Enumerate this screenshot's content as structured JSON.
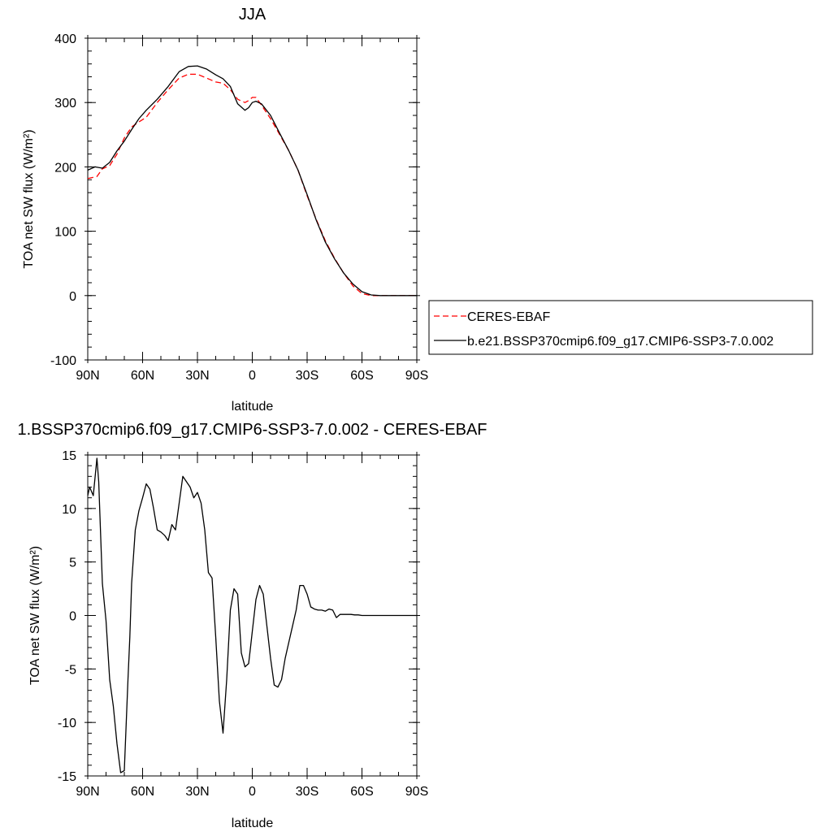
{
  "chart_data": [
    {
      "type": "line",
      "title": "JJA",
      "xlabel": "latitude",
      "ylabel": "TOA net SW flux (W/m²)",
      "xlim": [
        90,
        -90
      ],
      "ylim": [
        -100,
        400
      ],
      "x_ticks": [
        {
          "value": 90,
          "label": "90N"
        },
        {
          "value": 60,
          "label": "60N"
        },
        {
          "value": 30,
          "label": "30N"
        },
        {
          "value": 0,
          "label": "0"
        },
        {
          "value": -30,
          "label": "30S"
        },
        {
          "value": -60,
          "label": "60S"
        },
        {
          "value": -90,
          "label": "90S"
        }
      ],
      "y_ticks": [
        {
          "value": 400,
          "label": "400"
        },
        {
          "value": 300,
          "label": "300"
        },
        {
          "value": 200,
          "label": "200"
        },
        {
          "value": 100,
          "label": "100"
        },
        {
          "value": 0,
          "label": "0"
        },
        {
          "value": -100,
          "label": "-100"
        }
      ],
      "series": [
        {
          "name": "CERES-EBAF",
          "color": "#ff0000",
          "dash": true,
          "x": [
            90,
            85,
            82,
            78,
            74,
            70,
            66,
            62,
            58,
            52,
            46,
            40,
            35,
            30,
            25,
            20,
            16,
            12,
            8,
            4,
            2,
            0,
            -2,
            -5,
            -10,
            -15,
            -20,
            -25,
            -30,
            -35,
            -40,
            -45,
            -50,
            -55,
            -60,
            -65,
            -70,
            -75,
            -80,
            -85,
            -90
          ],
          "y": [
            182,
            185,
            197,
            202,
            220,
            245,
            262,
            270,
            277,
            300,
            320,
            338,
            344,
            344,
            338,
            332,
            330,
            320,
            305,
            300,
            303,
            308,
            308,
            296,
            275,
            250,
            225,
            195,
            155,
            118,
            85,
            58,
            35,
            15,
            3,
            0,
            0,
            0,
            0,
            0,
            0
          ]
        },
        {
          "name": "b.e21.BSSP370cmip6.f09_g17.CMIP6-SSP3-7.0.002",
          "color": "#000000",
          "dash": false,
          "x": [
            90,
            86,
            82,
            78,
            74,
            70,
            66,
            62,
            58,
            52,
            46,
            40,
            35,
            30,
            25,
            20,
            16,
            12,
            8,
            4,
            2,
            0,
            -2,
            -5,
            -10,
            -15,
            -20,
            -25,
            -30,
            -35,
            -40,
            -45,
            -50,
            -55,
            -60,
            -65,
            -70,
            -75,
            -80,
            -85,
            -90
          ],
          "y": [
            195,
            200,
            198,
            207,
            225,
            240,
            258,
            275,
            288,
            305,
            325,
            348,
            356,
            357,
            352,
            343,
            337,
            325,
            298,
            288,
            292,
            300,
            302,
            298,
            280,
            252,
            225,
            195,
            157,
            117,
            83,
            57,
            35,
            18,
            6,
            1,
            0,
            0,
            0,
            0,
            0
          ]
        }
      ],
      "legend": {
        "placement": "right",
        "entries": [
          "CERES-EBAF",
          "b.e21.BSSP370cmip6.f09_g17.CMIP6-SSP3-7.0.002"
        ]
      }
    },
    {
      "type": "line",
      "title": "1.BSSP370cmip6.f09_g17.CMIP6-SSP3-7.0.002 - CERES-EBAF",
      "xlabel": "latitude",
      "ylabel": "TOA net SW flux (W/m²)",
      "xlim": [
        90,
        -90
      ],
      "ylim": [
        -15,
        15
      ],
      "x_ticks": [
        {
          "value": 90,
          "label": "90N"
        },
        {
          "value": 60,
          "label": "60N"
        },
        {
          "value": 30,
          "label": "30N"
        },
        {
          "value": 0,
          "label": "0"
        },
        {
          "value": -30,
          "label": "30S"
        },
        {
          "value": -60,
          "label": "60S"
        },
        {
          "value": -90,
          "label": "90S"
        }
      ],
      "y_ticks": [
        {
          "value": 15,
          "label": "15"
        },
        {
          "value": 10,
          "label": "10"
        },
        {
          "value": 5,
          "label": "5"
        },
        {
          "value": 0,
          "label": "0"
        },
        {
          "value": -5,
          "label": "-5"
        },
        {
          "value": -10,
          "label": "-10"
        },
        {
          "value": -15,
          "label": "-15"
        }
      ],
      "series": [
        {
          "color": "#000000",
          "dash": false,
          "x": [
            90,
            89,
            87,
            85,
            84,
            82,
            80,
            78,
            76,
            74,
            72,
            70,
            68,
            67,
            66,
            64,
            62,
            60,
            58,
            56,
            54,
            52,
            50,
            48,
            46,
            44,
            42,
            40,
            38,
            36,
            34,
            32,
            30,
            28,
            26,
            24,
            22,
            20,
            18,
            16,
            14,
            12,
            10,
            8,
            6,
            4,
            2,
            1,
            0,
            -2,
            -4,
            -6,
            -8,
            -10,
            -12,
            -14,
            -16,
            -18,
            -20,
            -22,
            -24,
            -26,
            -28,
            -30,
            -32,
            -34,
            -36,
            -38,
            -40,
            -42,
            -44,
            -46,
            -48,
            -50,
            -52,
            -54,
            -56,
            -58,
            -60,
            -62,
            -64,
            -66,
            -68,
            -70,
            -72,
            -74,
            -76,
            -78,
            -79,
            -80,
            -82,
            -84,
            -86,
            -88,
            -90
          ],
          "y": [
            11.2,
            12.0,
            11.2,
            14.7,
            12.5,
            3.0,
            -0.5,
            -6.0,
            -8.5,
            -12.0,
            -14.7,
            -14.5,
            -6.0,
            -2.0,
            3.0,
            8.0,
            9.8,
            11.0,
            12.3,
            11.8,
            10.0,
            8.0,
            7.8,
            7.5,
            7.0,
            8.5,
            8.0,
            10.5,
            13.0,
            12.5,
            12.0,
            11.0,
            11.5,
            10.5,
            8.0,
            4.0,
            3.5,
            -2.0,
            -8.0,
            -11.0,
            -6.0,
            0.5,
            2.5,
            2.0,
            -3.5,
            -4.8,
            -4.5,
            -3.0,
            -1.5,
            1.5,
            2.8,
            2.0,
            -1.0,
            -4.0,
            -6.5,
            -6.7,
            -6.0,
            -4.0,
            -2.5,
            -1.0,
            0.5,
            2.8,
            2.8,
            2.0,
            0.8,
            0.6,
            0.5,
            0.5,
            0.4,
            0.6,
            0.5,
            -0.2,
            0.1,
            0.1,
            0.1,
            0.1,
            0.05,
            0.05,
            0.0,
            0.0,
            0.0,
            0.0,
            0.0,
            0.0,
            0.0,
            0.0,
            0.0,
            0.0,
            0.0,
            0.0,
            0.0,
            0.0,
            0.0,
            0.0,
            0.0
          ]
        }
      ]
    }
  ]
}
